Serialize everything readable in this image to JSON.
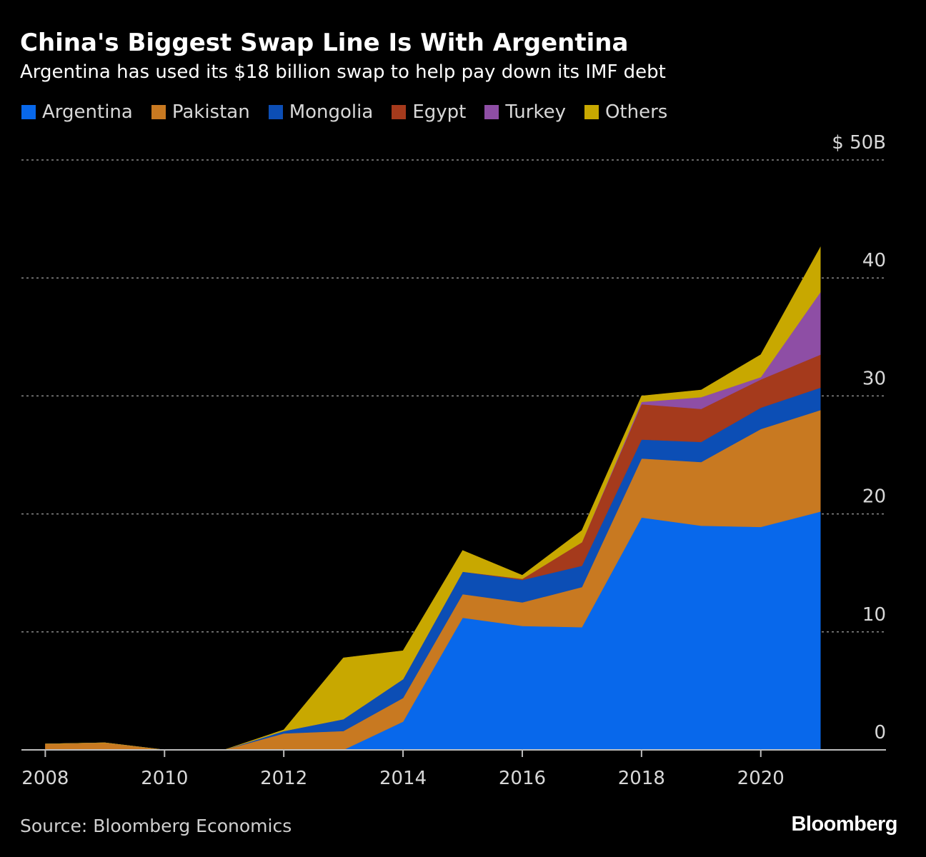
{
  "header": {
    "title": "China's Biggest Swap Line Is With Argentina",
    "subtitle": "Argentina has used its $18 billion swap to help pay down its IMF debt"
  },
  "footer": {
    "source": "Source: Bloomberg Economics",
    "brand": "Bloomberg"
  },
  "chart_data": {
    "type": "area",
    "stacked": true,
    "title": "China's Biggest Swap Line Is With Argentina",
    "subtitle": "Argentina has used its $18 billion swap to help pay down its IMF debt",
    "x": [
      2008,
      2009,
      2010,
      2011,
      2012,
      2013,
      2014,
      2015,
      2016,
      2017,
      2018,
      2019,
      2020,
      2021
    ],
    "x_ticks": [
      "2008",
      "2010",
      "2012",
      "2014",
      "2016",
      "2018",
      "2020"
    ],
    "x_tick_values": [
      2008,
      2010,
      2012,
      2014,
      2016,
      2018,
      2020
    ],
    "xlim": [
      2007.6,
      2022.1
    ],
    "y_ticks": [
      "0",
      "10",
      "20",
      "30",
      "40",
      "$ 50B"
    ],
    "y_tick_values": [
      0,
      10,
      20,
      30,
      40,
      50
    ],
    "ylim": [
      0,
      50
    ],
    "grid": true,
    "legend_position": "top-left",
    "series": [
      {
        "name": "Argentina",
        "color": "#0868eb",
        "values": [
          0,
          0,
          0,
          0,
          0,
          0,
          2.4,
          11.2,
          10.5,
          10.4,
          19.7,
          19.0,
          18.9,
          20.2
        ]
      },
      {
        "name": "Pakistan",
        "color": "#c87921",
        "values": [
          0.5,
          0.6,
          0,
          0,
          1.4,
          1.6,
          2.0,
          2.0,
          2.0,
          3.4,
          5.0,
          5.4,
          8.3,
          8.6
        ]
      },
      {
        "name": "Mongolia",
        "color": "#0c4eb5",
        "values": [
          0,
          0,
          0,
          0,
          0.2,
          1.0,
          1.6,
          1.9,
          1.9,
          1.8,
          1.6,
          1.7,
          1.8,
          1.9
        ]
      },
      {
        "name": "Egypt",
        "color": "#a53a1c",
        "values": [
          0,
          0,
          0,
          0,
          0,
          0,
          0,
          0,
          0.1,
          2.0,
          3.0,
          2.8,
          2.4,
          2.8
        ]
      },
      {
        "name": "Turkey",
        "color": "#8e4ea5",
        "values": [
          0,
          0,
          0,
          0,
          0,
          0,
          0,
          0,
          0,
          0,
          0.2,
          1.0,
          0.2,
          5.3
        ]
      },
      {
        "name": "Others",
        "color": "#c8a800",
        "values": [
          0,
          0,
          0,
          0,
          0.1,
          5.2,
          2.4,
          1.8,
          0.3,
          1.0,
          0.5,
          0.6,
          1.9,
          3.8
        ]
      }
    ]
  }
}
